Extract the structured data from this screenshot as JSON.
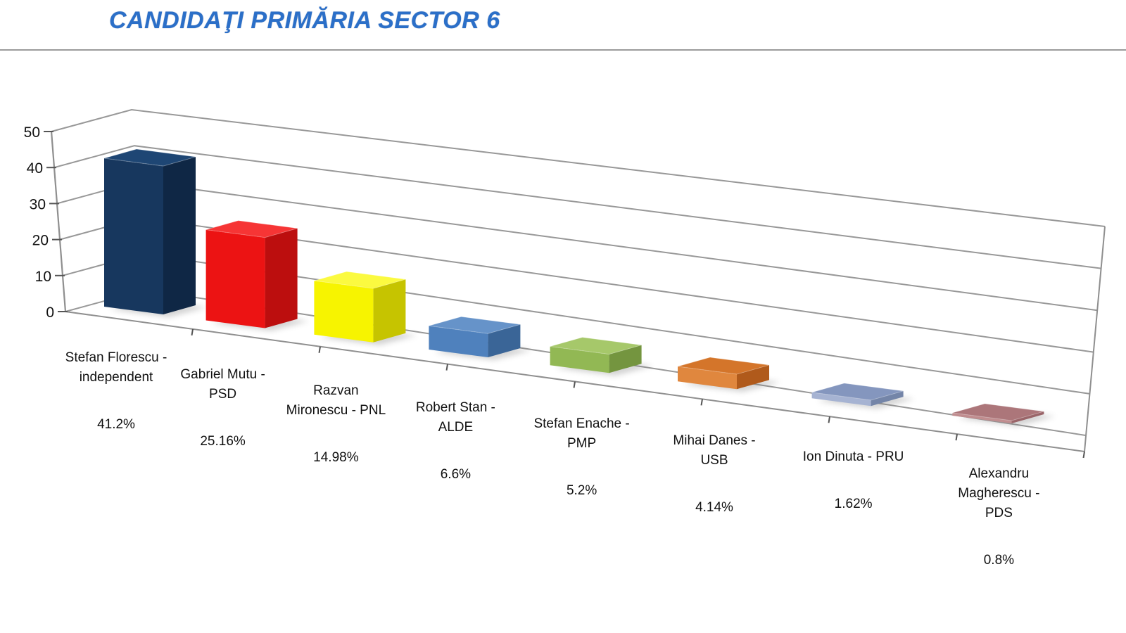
{
  "header": {
    "title": "CANDIDAŢI PRIMĂRIA SECTOR 6",
    "title_color": "#2B6FC8",
    "divider_color": "#9B9B9B"
  },
  "chart_data": {
    "type": "bar",
    "projection": "3d-perspective",
    "title": "CANDIDAŢI PRIMĂRIA SECTOR 6",
    "xlabel": "",
    "ylabel": "",
    "ylim": [
      0,
      50
    ],
    "yticks": [
      0,
      10,
      20,
      30,
      40,
      50
    ],
    "grid": true,
    "legend": "none",
    "background": "#ffffff",
    "grid_color": "#989898",
    "axis_color": "#8F8F8F",
    "tick_color": "#555555",
    "text_color": "#111111",
    "categories": [
      "Stefan Florescu - independent",
      "Gabriel Mutu - PSD",
      "Razvan Mironescu - PNL",
      "Robert Stan - ALDE",
      "Stefan Enache - PMP",
      "Mihai Danes - USB",
      "Ion Dinuta - PRU",
      "Alexandru Magherescu - PDS"
    ],
    "values": [
      41.2,
      25.16,
      14.98,
      6.6,
      5.2,
      4.14,
      1.62,
      0.8
    ],
    "data_labels": [
      "41.2%",
      "25.16%",
      "14.98%",
      "6.6%",
      "5.2%",
      "4.14%",
      "1.62%",
      "0.8%"
    ],
    "bars": [
      {
        "slug": "stefan-florescu-independent",
        "category": "Stefan Florescu - independent",
        "label_lines": [
          "Stefan Florescu -",
          "independent"
        ],
        "value": 41.2,
        "data_label": "41.2%",
        "color_front": "#17375E",
        "color_top": "#1E4674",
        "color_side": "#0F2745"
      },
      {
        "slug": "gabriel-mutu-psd",
        "category": "Gabriel Mutu - PSD",
        "label_lines": [
          "Gabriel Mutu -",
          "PSD"
        ],
        "value": 25.16,
        "data_label": "25.16%",
        "color_front": "#EC1313",
        "color_top": "#F63535",
        "color_side": "#BC0E0E"
      },
      {
        "slug": "razvan-mironescu-pnl",
        "category": "Razvan Mironescu - PNL",
        "label_lines": [
          "Razvan",
          "Mironescu - PNL"
        ],
        "value": 14.98,
        "data_label": "14.98%",
        "color_front": "#F7F400",
        "color_top": "#FBFA40",
        "color_side": "#C6C400"
      },
      {
        "slug": "robert-stan-alde",
        "category": "Robert Stan - ALDE",
        "label_lines": [
          "Robert Stan -",
          "ALDE"
        ],
        "value": 6.6,
        "data_label": "6.6%",
        "color_front": "#4F81BD",
        "color_top": "#6693C9",
        "color_side": "#3A6597"
      },
      {
        "slug": "stefan-enache-pmp",
        "category": "Stefan Enache - PMP",
        "label_lines": [
          "Stefan Enache -",
          "PMP"
        ],
        "value": 5.2,
        "data_label": "5.2%",
        "color_front": "#92B854",
        "color_top": "#A6C86A",
        "color_side": "#74953F"
      },
      {
        "slug": "mihai-danes-usb",
        "category": "Mihai Danes - USB",
        "label_lines": [
          "Mihai Danes -",
          "USB"
        ],
        "value": 4.14,
        "data_label": "4.14%",
        "color_front": "#E0873E",
        "color_top": "#D4752A",
        "color_side": "#B05A1B"
      },
      {
        "slug": "ion-dinuta-pru",
        "category": "Ion Dinuta - PRU",
        "label_lines": [
          "Ion Dinuta - PRU"
        ],
        "value": 1.62,
        "data_label": "1.62%",
        "color_front": "#A6B3D2",
        "color_top": "#8496BE",
        "color_side": "#7485A8"
      },
      {
        "slug": "alexandru-magherescu-pds",
        "category": "Alexandru Magherescu - PDS",
        "label_lines": [
          "Alexandru",
          "Magherescu -",
          "PDS"
        ],
        "value": 0.8,
        "data_label": "0.8%",
        "color_front": "#C08D8F",
        "color_top": "#AC767A",
        "color_side": "#9A6569"
      }
    ]
  }
}
